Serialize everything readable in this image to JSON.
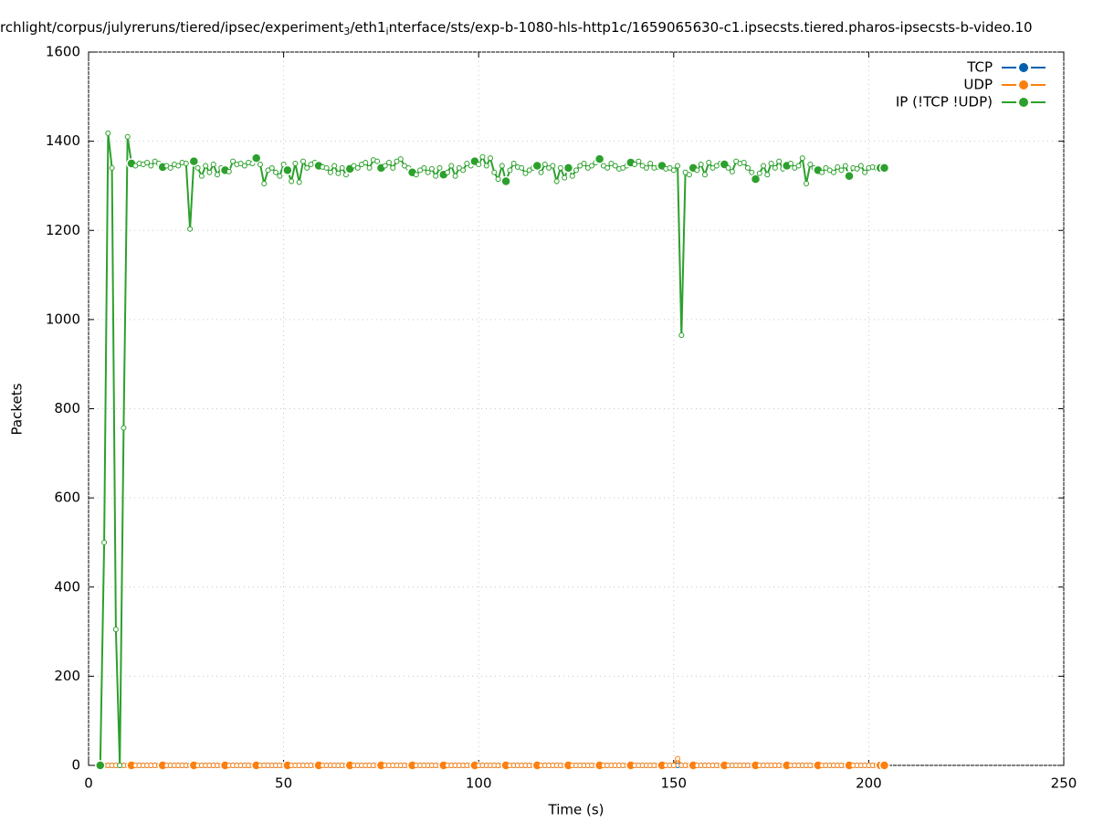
{
  "chart_data": {
    "type": "line",
    "title_parts": [
      "rchlight/corpus/julyreruns/tiered/ipsec/experiment",
      "3",
      "/eth1",
      "i",
      "nterface/sts/exp-b-1080-hls-http1c/1659065630-c1.ipsecsts.tiered.pharos-ipsecsts-b-video.10"
    ],
    "xlabel": "Time (s)",
    "ylabel": "Packets",
    "xlim": [
      0,
      250
    ],
    "xticks": [
      0,
      50,
      100,
      150,
      200,
      250
    ],
    "ylim": [
      0,
      1600
    ],
    "yticks": [
      0,
      200,
      400,
      600,
      800,
      1000,
      1200,
      1400,
      1600
    ],
    "grid": true,
    "legend": "top-right",
    "x": [
      3,
      4,
      5,
      6,
      7,
      8,
      9,
      10,
      11,
      12,
      13,
      14,
      15,
      16,
      17,
      18,
      19,
      20,
      21,
      22,
      23,
      24,
      25,
      26,
      27,
      28,
      29,
      30,
      31,
      32,
      33,
      34,
      35,
      36,
      37,
      38,
      39,
      40,
      41,
      42,
      43,
      44,
      45,
      46,
      47,
      48,
      49,
      50,
      51,
      52,
      53,
      54,
      55,
      56,
      57,
      58,
      59,
      60,
      61,
      62,
      63,
      64,
      65,
      66,
      67,
      68,
      69,
      70,
      71,
      72,
      73,
      74,
      75,
      76,
      77,
      78,
      79,
      80,
      81,
      82,
      83,
      84,
      85,
      86,
      87,
      88,
      89,
      90,
      91,
      92,
      93,
      94,
      95,
      96,
      97,
      98,
      99,
      100,
      101,
      102,
      103,
      104,
      105,
      106,
      107,
      108,
      109,
      110,
      111,
      112,
      113,
      114,
      115,
      116,
      117,
      118,
      119,
      120,
      121,
      122,
      123,
      124,
      125,
      126,
      127,
      128,
      129,
      130,
      131,
      132,
      133,
      134,
      135,
      136,
      137,
      138,
      139,
      140,
      141,
      142,
      143,
      144,
      145,
      146,
      147,
      148,
      149,
      150,
      151,
      152,
      153,
      154,
      155,
      156,
      157,
      158,
      159,
      160,
      161,
      162,
      163,
      164,
      165,
      166,
      167,
      168,
      169,
      170,
      171,
      172,
      173,
      174,
      175,
      176,
      177,
      178,
      179,
      180,
      181,
      182,
      183,
      184,
      185,
      186,
      187,
      188,
      189,
      190,
      191,
      192,
      193,
      194,
      195,
      196,
      197,
      198,
      199,
      200,
      201,
      202,
      203,
      204
    ],
    "series": [
      {
        "name": "TCP",
        "color": "#0060ad",
        "values": [
          0,
          0,
          0,
          0,
          0,
          0,
          0,
          0,
          0,
          0,
          0,
          0,
          0,
          0,
          0,
          0,
          0,
          0,
          0,
          0,
          0,
          0,
          0,
          0,
          0,
          0,
          0,
          0,
          0,
          0,
          0,
          0,
          0,
          0,
          0,
          0,
          0,
          0,
          0,
          0,
          0,
          0,
          0,
          0,
          0,
          0,
          0,
          0,
          0,
          0,
          0,
          0,
          0,
          0,
          0,
          0,
          0,
          0,
          0,
          0,
          0,
          0,
          0,
          0,
          0,
          0,
          0,
          0,
          0,
          0,
          0,
          0,
          0,
          0,
          0,
          0,
          0,
          0,
          0,
          0,
          0,
          0,
          0,
          0,
          0,
          0,
          0,
          0,
          0,
          0,
          0,
          0,
          0,
          0,
          0,
          0,
          0,
          0,
          0,
          0,
          0,
          0,
          0,
          0,
          0,
          0,
          0,
          0,
          0,
          0,
          0,
          0,
          0,
          0,
          0,
          0,
          0,
          0,
          0,
          0,
          0,
          0,
          0,
          0,
          0,
          0,
          0,
          0,
          0,
          0,
          0,
          0,
          0,
          0,
          0,
          0,
          0,
          0,
          0,
          0,
          0,
          0,
          0,
          0,
          0,
          0,
          0,
          0,
          0,
          0,
          0,
          0,
          0,
          0,
          0,
          0,
          0,
          0,
          0,
          0,
          0,
          0,
          0,
          0,
          0,
          0,
          0,
          0,
          0,
          0,
          0,
          0,
          0,
          0,
          0,
          0,
          0,
          0,
          0,
          0,
          0,
          0,
          0,
          0,
          0,
          0,
          0,
          0,
          0,
          0,
          0,
          0,
          0,
          0,
          0,
          0,
          0,
          0,
          0,
          0,
          0,
          0
        ]
      },
      {
        "name": "UDP",
        "color": "#ff7f0e",
        "values": [
          0,
          0,
          0,
          0,
          0,
          0,
          0,
          0,
          0,
          0,
          0,
          0,
          0,
          0,
          0,
          0,
          0,
          0,
          0,
          0,
          0,
          0,
          0,
          0,
          0,
          0,
          0,
          0,
          0,
          0,
          0,
          0,
          0,
          0,
          0,
          0,
          0,
          0,
          0,
          0,
          0,
          0,
          0,
          0,
          0,
          0,
          0,
          0,
          0,
          0,
          0,
          0,
          0,
          0,
          0,
          0,
          0,
          0,
          0,
          0,
          0,
          0,
          0,
          0,
          0,
          0,
          0,
          0,
          0,
          0,
          0,
          0,
          0,
          0,
          0,
          0,
          0,
          0,
          0,
          0,
          0,
          0,
          0,
          0,
          0,
          0,
          0,
          0,
          0,
          0,
          0,
          0,
          0,
          0,
          0,
          0,
          0,
          0,
          0,
          0,
          0,
          0,
          0,
          0,
          0,
          0,
          0,
          0,
          0,
          0,
          0,
          0,
          0,
          0,
          0,
          0,
          0,
          0,
          0,
          0,
          0,
          0,
          0,
          0,
          0,
          0,
          0,
          0,
          0,
          0,
          0,
          0,
          0,
          0,
          0,
          0,
          0,
          0,
          0,
          0,
          0,
          0,
          0,
          0,
          0,
          0,
          0,
          0,
          15,
          0,
          0,
          0,
          0,
          0,
          0,
          0,
          0,
          0,
          0,
          0,
          0,
          0,
          0,
          0,
          0,
          0,
          0,
          0,
          0,
          0,
          0,
          0,
          0,
          0,
          0,
          0,
          0,
          0,
          0,
          0,
          0,
          0,
          0,
          0,
          0,
          0,
          0,
          0,
          0,
          0,
          0,
          0,
          0,
          0,
          0,
          0,
          0,
          0,
          0,
          0,
          0,
          0
        ]
      },
      {
        "name": "IP (!TCP  !UDP)",
        "color": "#2ca02c",
        "values": [
          0,
          500,
          1418,
          1340,
          305,
          0,
          757,
          1410,
          1350,
          1345,
          1350,
          1348,
          1352,
          1345,
          1355,
          1350,
          1342,
          1345,
          1340,
          1348,
          1345,
          1352,
          1350,
          1203,
          1355,
          1340,
          1322,
          1345,
          1330,
          1348,
          1325,
          1340,
          1335,
          1332,
          1355,
          1348,
          1350,
          1345,
          1352,
          1350,
          1362,
          1348,
          1305,
          1335,
          1340,
          1330,
          1322,
          1348,
          1335,
          1310,
          1350,
          1308,
          1355,
          1340,
          1348,
          1352,
          1345,
          1342,
          1340,
          1330,
          1345,
          1328,
          1340,
          1325,
          1338,
          1345,
          1340,
          1348,
          1352,
          1340,
          1358,
          1355,
          1340,
          1345,
          1352,
          1340,
          1355,
          1360,
          1345,
          1340,
          1330,
          1325,
          1335,
          1340,
          1330,
          1338,
          1322,
          1340,
          1325,
          1330,
          1345,
          1322,
          1340,
          1335,
          1350,
          1345,
          1355,
          1348,
          1365,
          1345,
          1362,
          1330,
          1315,
          1345,
          1310,
          1335,
          1350,
          1342,
          1340,
          1328,
          1335,
          1340,
          1345,
          1330,
          1348,
          1340,
          1345,
          1310,
          1340,
          1318,
          1340,
          1322,
          1335,
          1345,
          1350,
          1340,
          1345,
          1352,
          1360,
          1345,
          1340,
          1350,
          1345,
          1338,
          1340,
          1345,
          1352,
          1348,
          1355,
          1345,
          1340,
          1350,
          1340,
          1342,
          1345,
          1338,
          1340,
          1335,
          1345,
          965,
          1330,
          1325,
          1340,
          1335,
          1348,
          1325,
          1352,
          1340,
          1345,
          1350,
          1348,
          1340,
          1332,
          1355,
          1350,
          1352,
          1340,
          1330,
          1315,
          1328,
          1345,
          1325,
          1350,
          1340,
          1355,
          1338,
          1345,
          1350,
          1340,
          1345,
          1362,
          1305,
          1348,
          1340,
          1335,
          1330,
          1340,
          1335,
          1330,
          1342,
          1335,
          1345,
          1322,
          1340,
          1338,
          1345,
          1330,
          1340,
          1342,
          1340,
          1340,
          1340
        ]
      }
    ]
  }
}
